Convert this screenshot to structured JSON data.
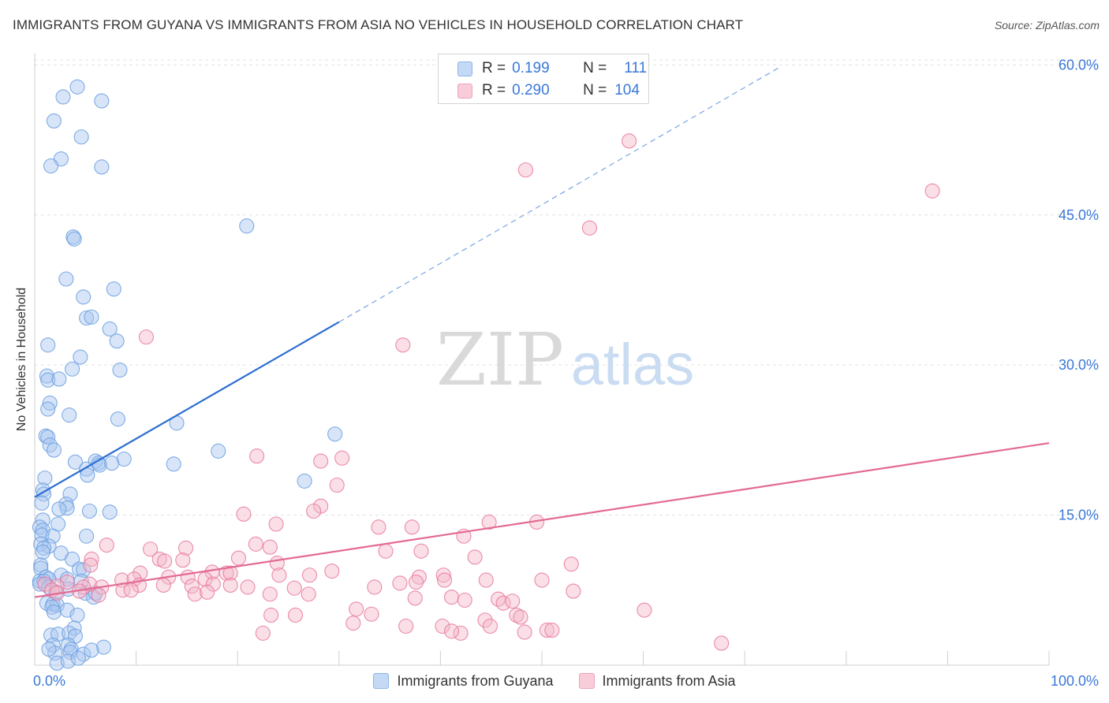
{
  "header": {
    "title": "IMMIGRANTS FROM GUYANA VS IMMIGRANTS FROM ASIA NO VEHICLES IN HOUSEHOLD CORRELATION CHART",
    "source": "Source: ZipAtlas.com"
  },
  "watermark": {
    "zip": "ZIP",
    "atlas": "atlas"
  },
  "legend": {
    "rows": [
      {
        "r_label": "R =",
        "r_value": "0.199",
        "n_label": "N =",
        "n_value": "111",
        "color": "#a9c6ef"
      },
      {
        "r_label": "R =",
        "r_value": "0.290",
        "n_label": "N =",
        "n_value": "104",
        "color": "#f5b8ca"
      }
    ]
  },
  "bottom_legend": {
    "items": [
      {
        "label": "Immigrants from Guyana",
        "color": "#a9c6ef"
      },
      {
        "label": "Immigrants from Asia",
        "color": "#f5b8ca"
      }
    ]
  },
  "chart_data": {
    "type": "scatter",
    "title": "IMMIGRANTS FROM GUYANA VS IMMIGRANTS FROM ASIA NO VEHICLES IN HOUSEHOLD CORRELATION CHART",
    "xlabel": "",
    "ylabel": "No Vehicles in Household",
    "x_tick_labels": [
      "0.0%",
      "100.0%"
    ],
    "y_tick_labels": [
      "15.0%",
      "30.0%",
      "45.0%",
      "60.0%"
    ],
    "y_ticks": [
      15,
      30,
      45,
      60
    ],
    "xlim": [
      0,
      100
    ],
    "ylim": [
      0,
      60.5
    ],
    "grid": true,
    "legend_position": "top-center",
    "series": [
      {
        "name": "Immigrants from Guyana",
        "color": "#6a9fe0",
        "fill": "#a9c6ef",
        "R": 0.199,
        "N": 111,
        "trend": {
          "x": [
            0,
            30
          ],
          "y": [
            16.8,
            34.3
          ],
          "style": "solid"
        },
        "trend_extension": {
          "x": [
            30,
            73.5
          ],
          "y": [
            34.3,
            59.8
          ],
          "style": "dashed"
        },
        "points": [
          [
            4.2,
            57.8
          ],
          [
            2.8,
            56.8
          ],
          [
            6.6,
            56.4
          ],
          [
            1.9,
            54.4
          ],
          [
            4.6,
            52.8
          ],
          [
            2.6,
            50.6
          ],
          [
            1.6,
            49.9
          ],
          [
            6.6,
            49.8
          ],
          [
            20.9,
            43.9
          ],
          [
            3.8,
            42.8
          ],
          [
            3.9,
            42.6
          ],
          [
            3.1,
            38.6
          ],
          [
            7.8,
            37.6
          ],
          [
            4.8,
            36.8
          ],
          [
            5.1,
            34.7
          ],
          [
            5.6,
            34.8
          ],
          [
            7.4,
            33.6
          ],
          [
            8.1,
            32.4
          ],
          [
            1.3,
            32.0
          ],
          [
            4.5,
            30.8
          ],
          [
            3.7,
            29.6
          ],
          [
            8.4,
            29.5
          ],
          [
            1.2,
            28.9
          ],
          [
            1.3,
            28.5
          ],
          [
            2.4,
            28.6
          ],
          [
            1.5,
            26.2
          ],
          [
            1.3,
            25.6
          ],
          [
            3.4,
            25.0
          ],
          [
            8.2,
            24.6
          ],
          [
            14.0,
            24.2
          ],
          [
            29.6,
            23.1
          ],
          [
            1.1,
            22.9
          ],
          [
            1.3,
            22.8
          ],
          [
            1.5,
            22.0
          ],
          [
            1.9,
            21.5
          ],
          [
            18.1,
            21.4
          ],
          [
            4.0,
            20.3
          ],
          [
            6.0,
            20.4
          ],
          [
            6.3,
            20.2
          ],
          [
            6.4,
            20.0
          ],
          [
            8.8,
            20.6
          ],
          [
            7.6,
            20.2
          ],
          [
            13.7,
            20.1
          ],
          [
            5.1,
            19.6
          ],
          [
            5.2,
            19.0
          ],
          [
            26.6,
            18.4
          ],
          [
            1.0,
            18.7
          ],
          [
            0.8,
            17.5
          ],
          [
            0.9,
            17.1
          ],
          [
            3.5,
            17.1
          ],
          [
            0.7,
            16.2
          ],
          [
            3.1,
            16.1
          ],
          [
            3.2,
            15.7
          ],
          [
            2.4,
            15.6
          ],
          [
            5.4,
            15.4
          ],
          [
            7.4,
            15.3
          ],
          [
            0.8,
            14.5
          ],
          [
            2.3,
            14.1
          ],
          [
            0.5,
            13.8
          ],
          [
            0.8,
            13.5
          ],
          [
            0.7,
            13.0
          ],
          [
            1.8,
            12.9
          ],
          [
            5.1,
            12.9
          ],
          [
            0.6,
            12.1
          ],
          [
            1.4,
            11.9
          ],
          [
            0.9,
            11.7
          ],
          [
            0.8,
            11.3
          ],
          [
            2.6,
            11.2
          ],
          [
            3.7,
            10.6
          ],
          [
            0.6,
            10.0
          ],
          [
            0.6,
            9.7
          ],
          [
            4.4,
            9.6
          ],
          [
            4.8,
            9.5
          ],
          [
            2.6,
            9.0
          ],
          [
            1.1,
            8.8
          ],
          [
            1.4,
            8.6
          ],
          [
            0.5,
            8.4
          ],
          [
            3.2,
            8.6
          ],
          [
            4.6,
            8.4
          ],
          [
            0.9,
            8.4
          ],
          [
            0.5,
            8.1
          ],
          [
            1.4,
            7.8
          ],
          [
            3.3,
            7.6
          ],
          [
            2.1,
            7.3
          ],
          [
            5.0,
            7.2
          ],
          [
            5.8,
            6.8
          ],
          [
            6.0,
            7.2
          ],
          [
            1.2,
            6.2
          ],
          [
            1.8,
            6.1
          ],
          [
            2.2,
            6.0
          ],
          [
            1.7,
            5.8
          ],
          [
            1.9,
            5.3
          ],
          [
            3.2,
            5.5
          ],
          [
            4.2,
            5.0
          ],
          [
            3.9,
            3.7
          ],
          [
            1.6,
            3.0
          ],
          [
            2.3,
            3.1
          ],
          [
            3.4,
            3.2
          ],
          [
            4.0,
            2.9
          ],
          [
            1.8,
            2.0
          ],
          [
            3.3,
            2.0
          ],
          [
            3.6,
            1.6
          ],
          [
            2.0,
            1.2
          ],
          [
            3.5,
            1.3
          ],
          [
            4.8,
            1.1
          ],
          [
            6.8,
            1.8
          ],
          [
            2.2,
            0.2
          ],
          [
            3.3,
            0.4
          ],
          [
            4.3,
            0.7
          ],
          [
            1.4,
            1.6
          ],
          [
            5.6,
            1.5
          ]
        ]
      },
      {
        "name": "Immigrants from Asia",
        "color": "#e8789c",
        "fill": "#f5b8ca",
        "R": 0.29,
        "N": 104,
        "trend": {
          "x": [
            0,
            100
          ],
          "y": [
            6.8,
            22.2
          ],
          "style": "solid"
        },
        "points": [
          [
            58.6,
            52.4
          ],
          [
            48.4,
            49.5
          ],
          [
            88.5,
            47.4
          ],
          [
            54.7,
            43.7
          ],
          [
            11.0,
            32.8
          ],
          [
            36.3,
            32.0
          ],
          [
            21.9,
            20.9
          ],
          [
            30.3,
            20.7
          ],
          [
            28.2,
            20.4
          ],
          [
            29.8,
            18.0
          ],
          [
            28.2,
            15.9
          ],
          [
            27.5,
            15.4
          ],
          [
            20.6,
            15.1
          ],
          [
            44.8,
            14.3
          ],
          [
            49.5,
            14.3
          ],
          [
            23.8,
            14.1
          ],
          [
            33.9,
            13.8
          ],
          [
            37.2,
            13.8
          ],
          [
            21.8,
            12.1
          ],
          [
            7.1,
            12.0
          ],
          [
            14.9,
            11.7
          ],
          [
            11.4,
            11.6
          ],
          [
            34.6,
            11.4
          ],
          [
            38.1,
            11.4
          ],
          [
            23.2,
            11.8
          ],
          [
            42.3,
            12.9
          ],
          [
            43.4,
            10.8
          ],
          [
            12.3,
            10.6
          ],
          [
            12.8,
            10.4
          ],
          [
            14.6,
            10.5
          ],
          [
            20.1,
            10.7
          ],
          [
            5.6,
            10.6
          ],
          [
            23.9,
            10.2
          ],
          [
            52.9,
            10.1
          ],
          [
            5.5,
            10.0
          ],
          [
            29.3,
            9.4
          ],
          [
            10.4,
            9.2
          ],
          [
            17.5,
            9.3
          ],
          [
            18.9,
            9.2
          ],
          [
            19.3,
            9.2
          ],
          [
            24.1,
            9.0
          ],
          [
            27.1,
            9.0
          ],
          [
            40.3,
            9.0
          ],
          [
            13.2,
            8.8
          ],
          [
            15.1,
            8.8
          ],
          [
            16.8,
            8.6
          ],
          [
            37.9,
            8.8
          ],
          [
            40.4,
            8.5
          ],
          [
            44.5,
            8.5
          ],
          [
            50.0,
            8.5
          ],
          [
            8.6,
            8.5
          ],
          [
            9.8,
            8.6
          ],
          [
            3.2,
            8.3
          ],
          [
            5.4,
            8.1
          ],
          [
            1.0,
            8.1
          ],
          [
            2.2,
            7.9
          ],
          [
            4.8,
            7.8
          ],
          [
            6.6,
            7.8
          ],
          [
            10.3,
            8.0
          ],
          [
            12.7,
            8.0
          ],
          [
            15.5,
            7.9
          ],
          [
            17.6,
            8.1
          ],
          [
            19.3,
            8.0
          ],
          [
            21.0,
            7.8
          ],
          [
            25.6,
            7.7
          ],
          [
            33.5,
            7.8
          ],
          [
            36.0,
            8.2
          ],
          [
            37.6,
            8.3
          ],
          [
            53.1,
            7.4
          ],
          [
            1.7,
            7.5
          ],
          [
            4.4,
            7.4
          ],
          [
            8.7,
            7.5
          ],
          [
            9.5,
            7.5
          ],
          [
            2.2,
            7.2
          ],
          [
            6.3,
            7.0
          ],
          [
            15.8,
            7.1
          ],
          [
            17.0,
            7.3
          ],
          [
            23.2,
            7.1
          ],
          [
            27.0,
            7.1
          ],
          [
            37.5,
            6.7
          ],
          [
            41.1,
            6.8
          ],
          [
            42.4,
            6.5
          ],
          [
            45.7,
            6.6
          ],
          [
            46.2,
            6.2
          ],
          [
            47.1,
            6.4
          ],
          [
            31.7,
            5.6
          ],
          [
            60.1,
            5.5
          ],
          [
            23.3,
            5.0
          ],
          [
            25.7,
            5.0
          ],
          [
            33.2,
            5.1
          ],
          [
            44.4,
            4.5
          ],
          [
            47.5,
            5.0
          ],
          [
            47.9,
            4.8
          ],
          [
            44.9,
            3.9
          ],
          [
            36.6,
            3.9
          ],
          [
            40.2,
            3.9
          ],
          [
            50.5,
            3.5
          ],
          [
            42.0,
            3.2
          ],
          [
            48.3,
            3.3
          ],
          [
            31.4,
            4.2
          ],
          [
            51.0,
            3.5
          ],
          [
            22.5,
            3.2
          ],
          [
            67.7,
            2.2
          ],
          [
            41.1,
            3.4
          ]
        ]
      }
    ]
  }
}
